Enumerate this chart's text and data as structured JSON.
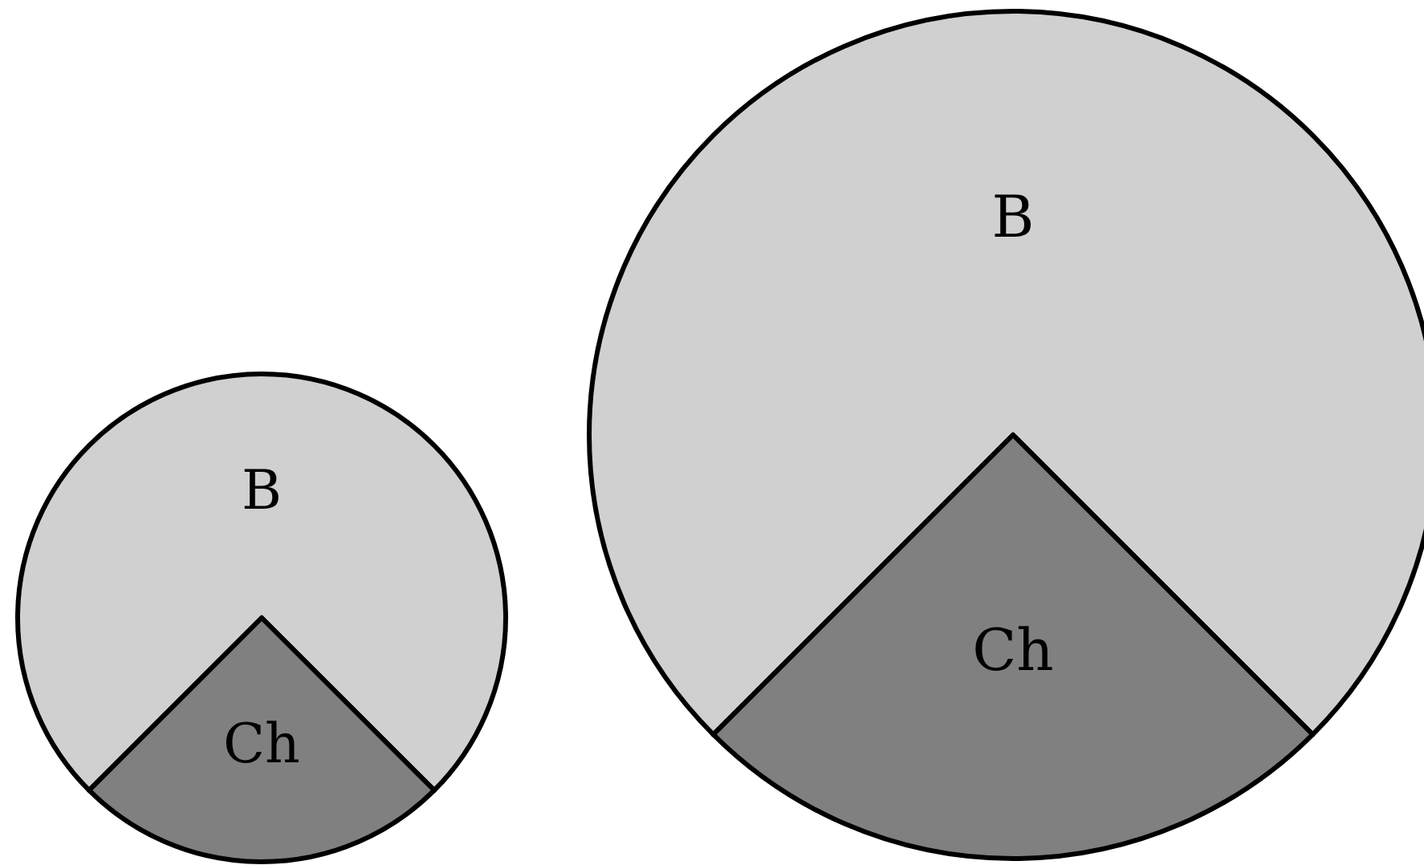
{
  "chart_data": [
    {
      "type": "pie",
      "categories": [
        "B",
        "Ch"
      ],
      "values": [
        75,
        25
      ],
      "colors": [
        "#d0d0d0",
        "#808080"
      ]
    },
    {
      "type": "pie",
      "categories": [
        "B",
        "Ch"
      ],
      "values": [
        75,
        25
      ],
      "colors": [
        "#d0d0d0",
        "#808080"
      ]
    }
  ]
}
